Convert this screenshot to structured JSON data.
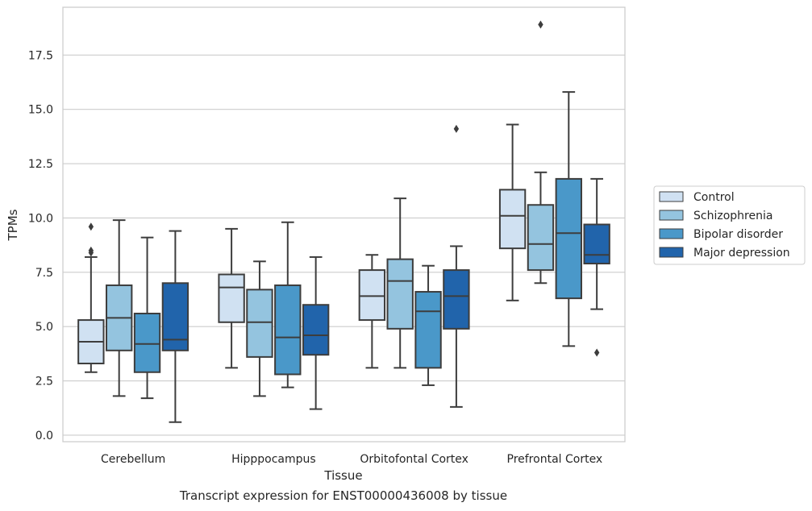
{
  "caption": "Transcript expression for ENST00000436008 by tissue",
  "chart_data": {
    "type": "box",
    "xlabel": "Tissue",
    "ylabel": "TPMs",
    "ylim": [
      -0.3,
      19.7
    ],
    "yticks": [
      0.0,
      2.5,
      5.0,
      7.5,
      10.0,
      12.5,
      15.0,
      17.5
    ],
    "ytick_labels": [
      "0.0",
      "2.5",
      "5.0",
      "7.5",
      "10.0",
      "12.5",
      "15.0",
      "17.5"
    ],
    "grid": "horizontal",
    "legend_position": "right",
    "categories": [
      "Cerebellum",
      "Hipppocampus",
      "Orbitofontal Cortex",
      "Prefrontal Cortex"
    ],
    "series": [
      {
        "name": "Control",
        "color": "#d0e1f2",
        "boxes": [
          {
            "whislo": 2.9,
            "q1": 3.3,
            "med": 4.3,
            "q3": 5.3,
            "whishi": 8.2,
            "fliers": [
              8.5,
              8.4,
              9.6
            ]
          },
          {
            "whislo": 3.1,
            "q1": 5.2,
            "med": 6.8,
            "q3": 7.4,
            "whishi": 9.5,
            "fliers": []
          },
          {
            "whislo": 3.1,
            "q1": 5.3,
            "med": 6.4,
            "q3": 7.6,
            "whishi": 8.3,
            "fliers": []
          },
          {
            "whislo": 6.2,
            "q1": 8.6,
            "med": 10.1,
            "q3": 11.3,
            "whishi": 14.3,
            "fliers": []
          }
        ]
      },
      {
        "name": "Schizophrenia",
        "color": "#94c4df",
        "boxes": [
          {
            "whislo": 1.8,
            "q1": 3.9,
            "med": 5.4,
            "q3": 6.9,
            "whishi": 9.9,
            "fliers": []
          },
          {
            "whislo": 1.8,
            "q1": 3.6,
            "med": 5.2,
            "q3": 6.7,
            "whishi": 8.0,
            "fliers": []
          },
          {
            "whislo": 3.1,
            "q1": 4.9,
            "med": 7.1,
            "q3": 8.1,
            "whishi": 10.9,
            "fliers": []
          },
          {
            "whislo": 7.0,
            "q1": 7.6,
            "med": 8.8,
            "q3": 10.6,
            "whishi": 12.1,
            "fliers": [
              18.9
            ]
          }
        ]
      },
      {
        "name": "Bipolar disorder",
        "color": "#4a98c9",
        "boxes": [
          {
            "whislo": 1.7,
            "q1": 2.9,
            "med": 4.2,
            "q3": 5.6,
            "whishi": 9.1,
            "fliers": []
          },
          {
            "whislo": 2.2,
            "q1": 2.8,
            "med": 4.5,
            "q3": 6.9,
            "whishi": 9.8,
            "fliers": []
          },
          {
            "whislo": 2.3,
            "q1": 3.1,
            "med": 5.7,
            "q3": 6.6,
            "whishi": 7.8,
            "fliers": []
          },
          {
            "whislo": 4.1,
            "q1": 6.3,
            "med": 9.3,
            "q3": 11.8,
            "whishi": 15.8,
            "fliers": []
          }
        ]
      },
      {
        "name": "Major depression",
        "color": "#2164ab",
        "boxes": [
          {
            "whislo": 0.6,
            "q1": 3.9,
            "med": 4.4,
            "q3": 7.0,
            "whishi": 9.4,
            "fliers": []
          },
          {
            "whislo": 1.2,
            "q1": 3.7,
            "med": 4.6,
            "q3": 6.0,
            "whishi": 8.2,
            "fliers": []
          },
          {
            "whislo": 1.3,
            "q1": 4.9,
            "med": 6.4,
            "q3": 7.6,
            "whishi": 8.7,
            "fliers": [
              14.1
            ]
          },
          {
            "whislo": 5.8,
            "q1": 7.9,
            "med": 8.3,
            "q3": 9.7,
            "whishi": 11.8,
            "fliers": [
              3.8
            ]
          }
        ]
      }
    ]
  }
}
